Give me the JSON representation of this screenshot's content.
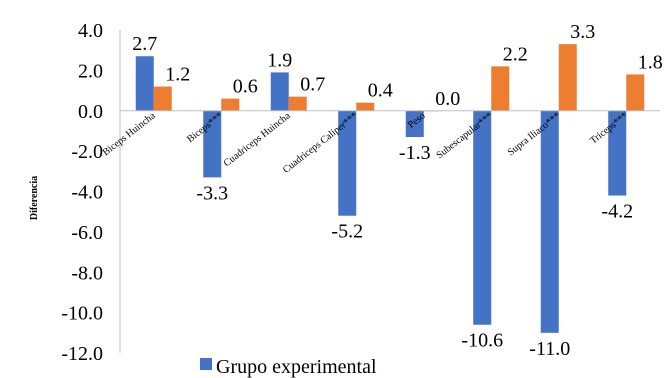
{
  "chart_data": {
    "type": "bar",
    "ylabel": "Diferencia",
    "ylim": [
      -12,
      4
    ],
    "ytick_step": 2,
    "yticks": [
      "4.0",
      "2.0",
      "0.0",
      "-2.0",
      "-4.0",
      "-6.0",
      "-8.0",
      "-10.0",
      "-12.0"
    ],
    "categories": [
      "Biceps Huincha",
      "Biceps***",
      "Cuadriceps Huincha",
      "Cuadriceps Caliper***",
      "Peso",
      "Subescapular***",
      "Supra Iliaco***",
      "Triceps***"
    ],
    "series": [
      {
        "name": "Grupo experimental",
        "color": "#4472C4",
        "values": [
          2.7,
          -3.3,
          1.9,
          -5.2,
          -1.3,
          -10.6,
          -11.0,
          -4.2
        ],
        "labels": [
          "2.7",
          "-3.3",
          "1.9",
          "-5.2",
          "-1.3",
          "-10.6",
          "-11.0",
          "-4.2"
        ]
      },
      {
        "name": "",
        "color": "#ED7D31",
        "values": [
          1.2,
          0.6,
          0.7,
          0.4,
          0.0,
          2.2,
          3.3,
          1.8
        ],
        "labels": [
          "1.2",
          "0.6",
          "0.7",
          "0.4",
          "0.0",
          "2.2",
          "3.3",
          "1.8"
        ]
      }
    ],
    "legend": {
      "position": "bottom",
      "visible_entries": [
        "Grupo experimental"
      ]
    },
    "grid": false
  }
}
